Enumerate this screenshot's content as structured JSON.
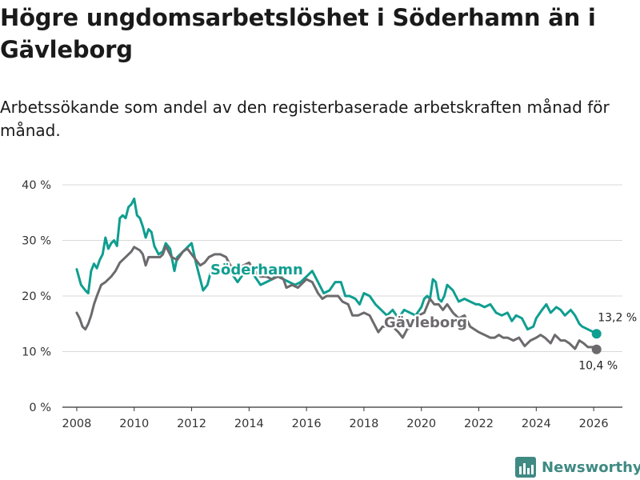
{
  "title": "Högre ungdomsarbetslöshet i Söderhamn än i Gävleborg",
  "subtitle": "Arbetssökande som andel av den registerbaserade arbetskraften månad för månad.",
  "brand": {
    "name": "Newsworthy",
    "logo_icon": "bar-chart-logo-icon"
  },
  "colors": {
    "soderhamn": "#0f9e90",
    "gavleborg": "#6c6a6d",
    "grid": "#d9d9d9",
    "axis": "#333333"
  },
  "chart_data": {
    "type": "line",
    "title": "Högre ungdomsarbetslöshet i Söderhamn än i Gävleborg",
    "xlabel": "",
    "ylabel": "",
    "xlim": [
      2007.5,
      2027
    ],
    "ylim": [
      0,
      40
    ],
    "grid": true,
    "x_ticks": [
      2008,
      2010,
      2012,
      2014,
      2016,
      2018,
      2020,
      2022,
      2024,
      2026
    ],
    "x_tick_labels": [
      "2008",
      "2010",
      "2012",
      "2014",
      "2016",
      "2018",
      "2020",
      "2022",
      "2024",
      "2026"
    ],
    "y_ticks": [
      0,
      10,
      20,
      30,
      40
    ],
    "y_tick_labels": [
      "0 %",
      "10 %",
      "20 %",
      "30 %",
      "40 %"
    ],
    "series": [
      {
        "name": "Söderhamn",
        "label": "Söderhamn",
        "end_label": "13,2 %",
        "end_value": 13.2,
        "points": [
          [
            2008.0,
            24.8
          ],
          [
            2008.15,
            22.0
          ],
          [
            2008.3,
            21.0
          ],
          [
            2008.4,
            20.5
          ],
          [
            2008.5,
            24.5
          ],
          [
            2008.6,
            25.8
          ],
          [
            2008.7,
            25.0
          ],
          [
            2008.8,
            26.5
          ],
          [
            2008.9,
            27.5
          ],
          [
            2009.0,
            30.5
          ],
          [
            2009.1,
            28.5
          ],
          [
            2009.2,
            29.5
          ],
          [
            2009.3,
            30.0
          ],
          [
            2009.4,
            29.0
          ],
          [
            2009.5,
            34.0
          ],
          [
            2009.6,
            34.5
          ],
          [
            2009.7,
            34.0
          ],
          [
            2009.8,
            36.0
          ],
          [
            2009.9,
            36.5
          ],
          [
            2010.0,
            37.5
          ],
          [
            2010.1,
            34.5
          ],
          [
            2010.2,
            34.0
          ],
          [
            2010.3,
            32.5
          ],
          [
            2010.4,
            30.5
          ],
          [
            2010.5,
            32.0
          ],
          [
            2010.6,
            31.5
          ],
          [
            2010.7,
            29.0
          ],
          [
            2010.85,
            27.5
          ],
          [
            2011.0,
            28.0
          ],
          [
            2011.1,
            29.5
          ],
          [
            2011.25,
            28.5
          ],
          [
            2011.4,
            24.5
          ],
          [
            2011.5,
            27.0
          ],
          [
            2011.7,
            28.0
          ],
          [
            2011.9,
            29.0
          ],
          [
            2012.0,
            29.5
          ],
          [
            2012.15,
            26.0
          ],
          [
            2012.3,
            23.0
          ],
          [
            2012.4,
            21.0
          ],
          [
            2012.55,
            22.0
          ],
          [
            2012.7,
            25.0
          ],
          [
            2012.9,
            25.0
          ],
          [
            2013.1,
            24.0
          ],
          [
            2013.4,
            24.0
          ],
          [
            2013.6,
            22.5
          ],
          [
            2013.8,
            24.0
          ],
          [
            2014.0,
            24.5
          ],
          [
            2014.2,
            23.5
          ],
          [
            2014.4,
            22.0
          ],
          [
            2014.6,
            22.5
          ],
          [
            2014.8,
            23.0
          ],
          [
            2015.0,
            24.0
          ],
          [
            2015.2,
            23.0
          ],
          [
            2015.4,
            22.5
          ],
          [
            2015.6,
            22.0
          ],
          [
            2015.8,
            22.5
          ],
          [
            2016.0,
            23.5
          ],
          [
            2016.2,
            24.5
          ],
          [
            2016.4,
            22.5
          ],
          [
            2016.6,
            20.5
          ],
          [
            2016.8,
            21.0
          ],
          [
            2017.0,
            22.5
          ],
          [
            2017.2,
            22.5
          ],
          [
            2017.35,
            20.0
          ],
          [
            2017.5,
            20.0
          ],
          [
            2017.7,
            19.5
          ],
          [
            2017.85,
            18.5
          ],
          [
            2018.0,
            20.5
          ],
          [
            2018.2,
            20.0
          ],
          [
            2018.4,
            18.5
          ],
          [
            2018.6,
            17.5
          ],
          [
            2018.8,
            16.5
          ],
          [
            2019.0,
            17.5
          ],
          [
            2019.2,
            16.0
          ],
          [
            2019.4,
            17.5
          ],
          [
            2019.6,
            17.0
          ],
          [
            2019.8,
            16.5
          ],
          [
            2020.0,
            18.0
          ],
          [
            2020.1,
            19.5
          ],
          [
            2020.2,
            20.0
          ],
          [
            2020.3,
            19.5
          ],
          [
            2020.4,
            23.0
          ],
          [
            2020.5,
            22.5
          ],
          [
            2020.6,
            19.5
          ],
          [
            2020.7,
            19.0
          ],
          [
            2020.8,
            20.0
          ],
          [
            2020.9,
            22.0
          ],
          [
            2021.0,
            21.5
          ],
          [
            2021.1,
            21.0
          ],
          [
            2021.2,
            20.0
          ],
          [
            2021.3,
            19.0
          ],
          [
            2021.5,
            19.5
          ],
          [
            2021.7,
            19.0
          ],
          [
            2021.9,
            18.5
          ],
          [
            2022.0,
            18.5
          ],
          [
            2022.2,
            18.0
          ],
          [
            2022.4,
            18.5
          ],
          [
            2022.6,
            17.0
          ],
          [
            2022.8,
            16.5
          ],
          [
            2023.0,
            17.0
          ],
          [
            2023.15,
            15.5
          ],
          [
            2023.3,
            16.5
          ],
          [
            2023.5,
            16.0
          ],
          [
            2023.7,
            14.0
          ],
          [
            2023.9,
            14.5
          ],
          [
            2024.0,
            16.0
          ],
          [
            2024.2,
            17.5
          ],
          [
            2024.35,
            18.5
          ],
          [
            2024.5,
            17.0
          ],
          [
            2024.7,
            18.0
          ],
          [
            2024.85,
            17.5
          ],
          [
            2025.0,
            16.5
          ],
          [
            2025.2,
            17.5
          ],
          [
            2025.35,
            16.5
          ],
          [
            2025.5,
            15.0
          ],
          [
            2025.6,
            14.5
          ],
          [
            2025.8,
            14.0
          ],
          [
            2026.0,
            13.5
          ],
          [
            2026.1,
            13.2
          ]
        ]
      },
      {
        "name": "Gävleborg",
        "label": "Gävleborg",
        "end_label": "10,4 %",
        "end_value": 10.4,
        "points": [
          [
            2008.0,
            17.0
          ],
          [
            2008.1,
            16.0
          ],
          [
            2008.2,
            14.5
          ],
          [
            2008.3,
            14.0
          ],
          [
            2008.4,
            15.0
          ],
          [
            2008.5,
            16.5
          ],
          [
            2008.6,
            18.5
          ],
          [
            2008.7,
            20.0
          ],
          [
            2008.85,
            22.0
          ],
          [
            2009.0,
            22.5
          ],
          [
            2009.2,
            23.5
          ],
          [
            2009.35,
            24.5
          ],
          [
            2009.5,
            26.0
          ],
          [
            2009.7,
            27.0
          ],
          [
            2009.9,
            28.0
          ],
          [
            2010.0,
            28.8
          ],
          [
            2010.2,
            28.2
          ],
          [
            2010.3,
            27.5
          ],
          [
            2010.4,
            25.5
          ],
          [
            2010.5,
            27.0
          ],
          [
            2010.7,
            27.0
          ],
          [
            2010.9,
            27.0
          ],
          [
            2011.0,
            27.5
          ],
          [
            2011.1,
            29.0
          ],
          [
            2011.3,
            27.0
          ],
          [
            2011.5,
            26.5
          ],
          [
            2011.7,
            28.0
          ],
          [
            2011.85,
            28.5
          ],
          [
            2012.0,
            27.5
          ],
          [
            2012.15,
            26.5
          ],
          [
            2012.3,
            25.5
          ],
          [
            2012.45,
            26.0
          ],
          [
            2012.6,
            27.0
          ],
          [
            2012.8,
            27.5
          ],
          [
            2013.0,
            27.5
          ],
          [
            2013.2,
            27.0
          ],
          [
            2013.35,
            25.5
          ],
          [
            2013.6,
            25.0
          ],
          [
            2013.8,
            25.5
          ],
          [
            2014.0,
            26.0
          ],
          [
            2014.2,
            24.5
          ],
          [
            2014.4,
            23.5
          ],
          [
            2014.6,
            23.5
          ],
          [
            2014.8,
            23.0
          ],
          [
            2015.0,
            23.5
          ],
          [
            2015.2,
            23.0
          ],
          [
            2015.3,
            21.5
          ],
          [
            2015.5,
            22.0
          ],
          [
            2015.7,
            21.5
          ],
          [
            2015.9,
            22.5
          ],
          [
            2016.0,
            23.0
          ],
          [
            2016.2,
            22.5
          ],
          [
            2016.4,
            20.5
          ],
          [
            2016.55,
            19.5
          ],
          [
            2016.7,
            20.0
          ],
          [
            2016.9,
            20.0
          ],
          [
            2017.1,
            20.0
          ],
          [
            2017.25,
            19.0
          ],
          [
            2017.45,
            18.5
          ],
          [
            2017.6,
            16.5
          ],
          [
            2017.8,
            16.5
          ],
          [
            2018.0,
            17.0
          ],
          [
            2018.2,
            16.5
          ],
          [
            2018.35,
            15.0
          ],
          [
            2018.5,
            13.5
          ],
          [
            2018.65,
            14.5
          ],
          [
            2018.8,
            14.5
          ],
          [
            2019.0,
            14.5
          ],
          [
            2019.2,
            13.5
          ],
          [
            2019.35,
            12.5
          ],
          [
            2019.5,
            14.0
          ],
          [
            2019.7,
            14.5
          ],
          [
            2019.9,
            16.5
          ],
          [
            2020.1,
            17.0
          ],
          [
            2020.3,
            19.5
          ],
          [
            2020.45,
            18.5
          ],
          [
            2020.6,
            18.5
          ],
          [
            2020.75,
            17.5
          ],
          [
            2020.9,
            18.5
          ],
          [
            2021.1,
            17.0
          ],
          [
            2021.3,
            16.0
          ],
          [
            2021.5,
            16.5
          ],
          [
            2021.7,
            14.5
          ],
          [
            2021.85,
            14.0
          ],
          [
            2022.0,
            13.5
          ],
          [
            2022.2,
            13.0
          ],
          [
            2022.4,
            12.5
          ],
          [
            2022.55,
            12.5
          ],
          [
            2022.7,
            13.0
          ],
          [
            2022.85,
            12.5
          ],
          [
            2023.0,
            12.5
          ],
          [
            2023.2,
            12.0
          ],
          [
            2023.4,
            12.5
          ],
          [
            2023.6,
            11.0
          ],
          [
            2023.8,
            12.0
          ],
          [
            2024.0,
            12.5
          ],
          [
            2024.15,
            13.0
          ],
          [
            2024.3,
            12.5
          ],
          [
            2024.5,
            11.5
          ],
          [
            2024.65,
            13.0
          ],
          [
            2024.85,
            12.0
          ],
          [
            2025.0,
            12.0
          ],
          [
            2025.15,
            11.5
          ],
          [
            2025.35,
            10.5
          ],
          [
            2025.5,
            12.0
          ],
          [
            2025.65,
            11.5
          ],
          [
            2025.8,
            10.8
          ],
          [
            2026.0,
            10.8
          ],
          [
            2026.1,
            10.4
          ]
        ]
      }
    ]
  }
}
